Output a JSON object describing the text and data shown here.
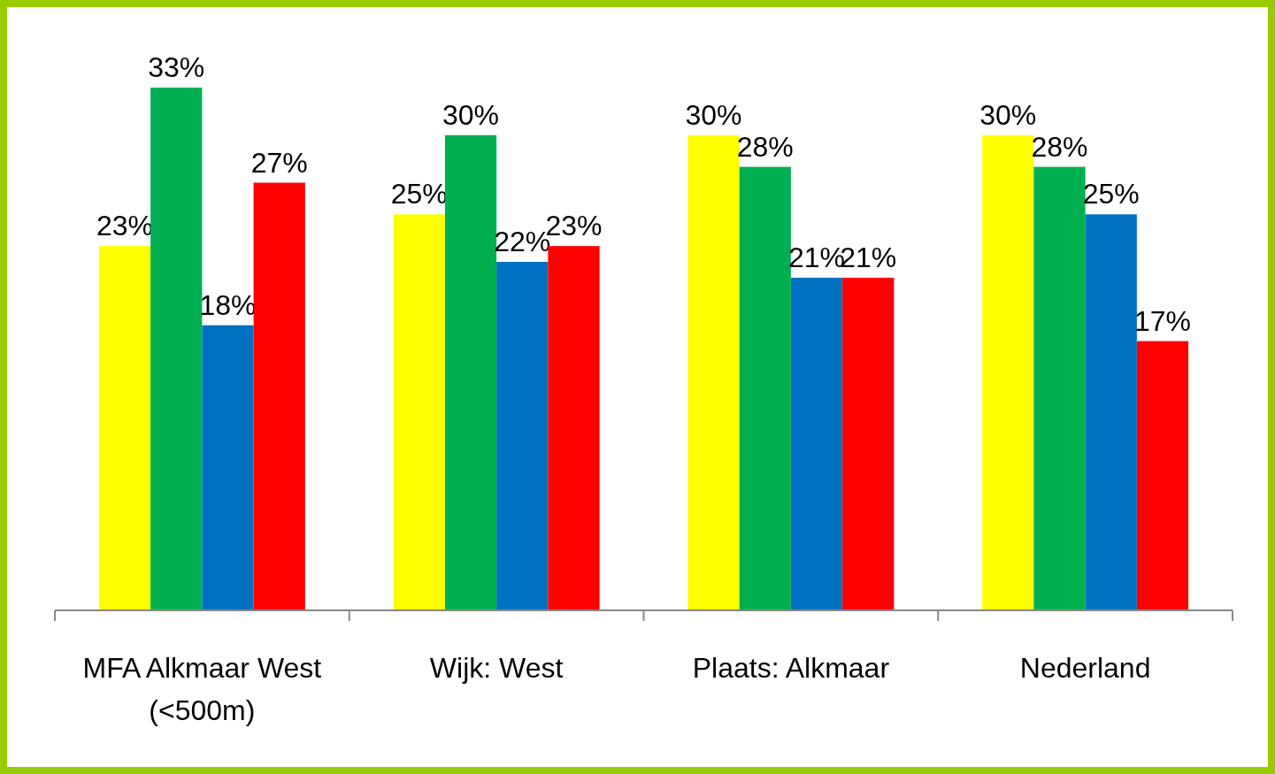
{
  "chart_data": {
    "type": "bar",
    "categories": [
      "MFA Alkmaar West (<500m)",
      "Wijk: West",
      "Plaats: Alkmaar",
      "Nederland"
    ],
    "series": [
      {
        "color": "#ffff00",
        "values": [
          23,
          25,
          30,
          30
        ],
        "value_labels": [
          "23%",
          "25%",
          "30%",
          "30%"
        ]
      },
      {
        "color": "#00b050",
        "values": [
          33,
          30,
          28,
          28
        ],
        "value_labels": [
          "33%",
          "30%",
          "28%",
          "28%"
        ]
      },
      {
        "color": "#0070c0",
        "values": [
          18,
          22,
          21,
          25
        ],
        "value_labels": [
          "18%",
          "22%",
          "21%",
          "25%"
        ]
      },
      {
        "color": "#ff0000",
        "values": [
          27,
          23,
          21,
          17
        ],
        "value_labels": [
          "27%",
          "23%",
          "21%",
          "17%"
        ]
      }
    ],
    "grid": false
  }
}
